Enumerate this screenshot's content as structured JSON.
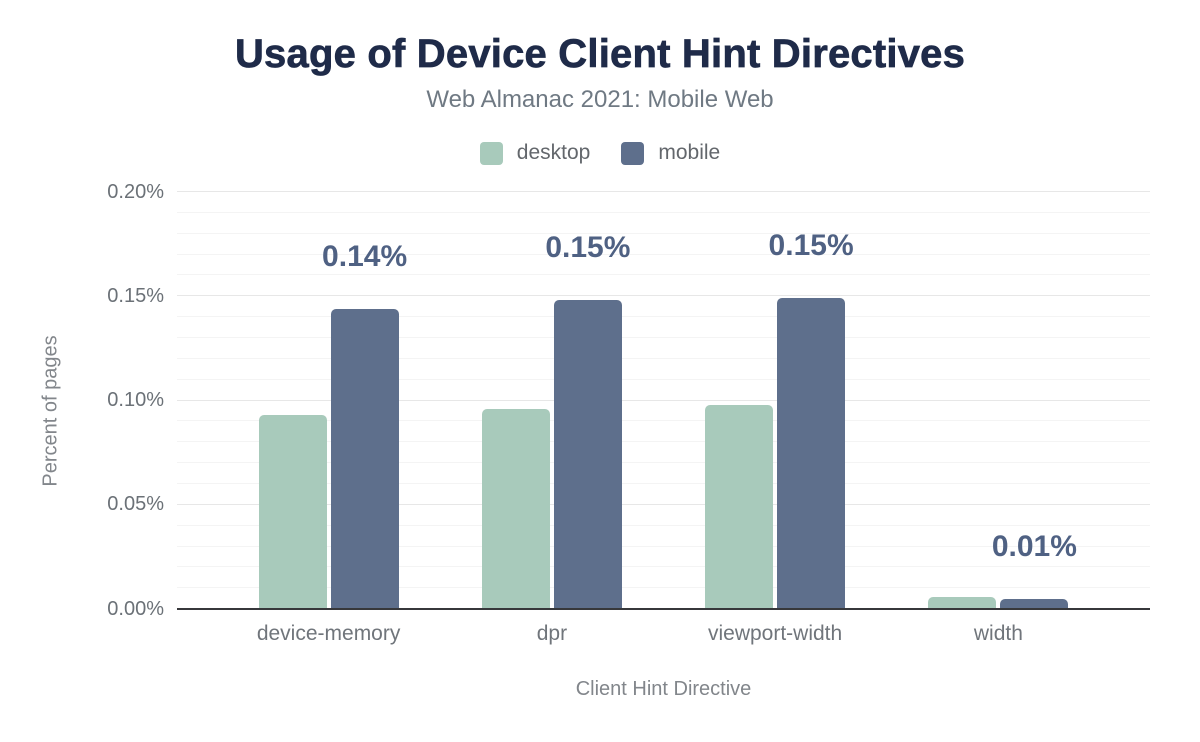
{
  "chart_data": {
    "type": "bar",
    "title": "Usage of Device Client Hint Directives",
    "subtitle": "Web Almanac 2021: Mobile Web",
    "xlabel": "Client Hint Directive",
    "ylabel": "Percent of pages",
    "categories": [
      "device-memory",
      "dpr",
      "viewport-width",
      "width"
    ],
    "series": [
      {
        "name": "desktop",
        "color": "#a8cabb",
        "values": [
          0.093,
          0.096,
          0.098,
          0.006
        ]
      },
      {
        "name": "mobile",
        "color": "#5e6f8c",
        "values": [
          0.144,
          0.148,
          0.149,
          0.005
        ]
      }
    ],
    "value_labels": {
      "series": "mobile",
      "labels": [
        "0.14%",
        "0.15%",
        "0.15%",
        "0.01%"
      ]
    },
    "ylim": [
      0,
      0.2
    ],
    "yticks": [
      {
        "value": 0.0,
        "label": "0.00%"
      },
      {
        "value": 0.05,
        "label": "0.05%"
      },
      {
        "value": 0.1,
        "label": "0.10%"
      },
      {
        "value": 0.15,
        "label": "0.15%"
      },
      {
        "value": 0.2,
        "label": "0.20%"
      }
    ],
    "grid": {
      "orientation": "horizontal",
      "minor_step": 0.01,
      "major_step": 0.05
    },
    "legend": {
      "position": "top",
      "entries": [
        "desktop",
        "mobile"
      ]
    },
    "colors": {
      "title": "#1f2b49",
      "subtitle": "#6f7983",
      "desktop": "#a8cabb",
      "mobile": "#5e6f8c",
      "value_label": "#4f6183",
      "axis_line": "#37383b",
      "tick_label": "#6b7177"
    }
  }
}
